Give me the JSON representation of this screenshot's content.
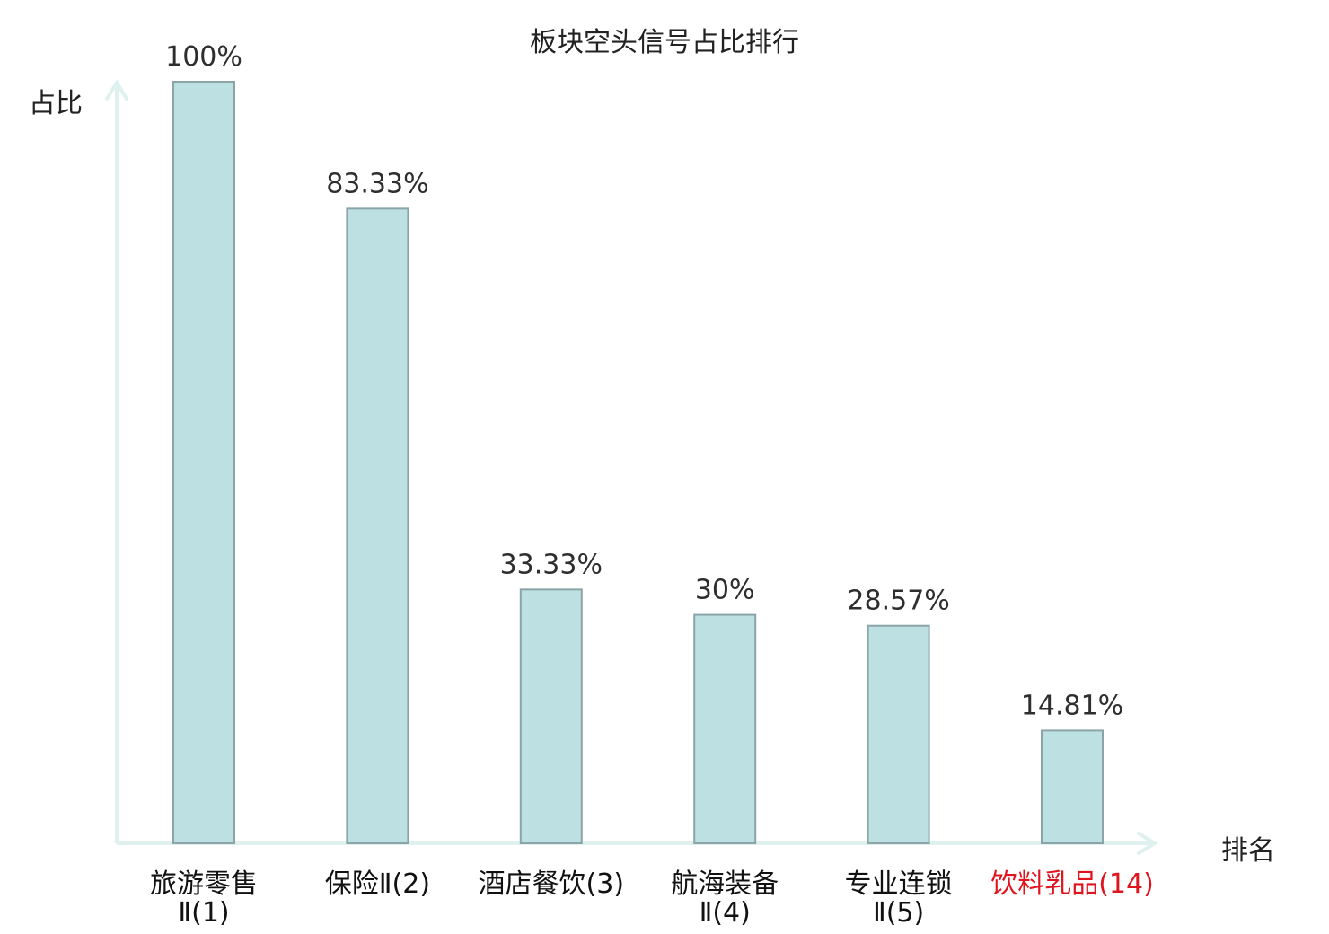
{
  "chart_data": {
    "type": "bar",
    "title": "板块空头信号占比排行",
    "xlabel": "排名",
    "ylabel": "占比",
    "ylim": [
      0,
      100
    ],
    "grid": false,
    "categories": [
      {
        "lines": [
          "旅游零售",
          "Ⅱ(1)"
        ],
        "highlight": false
      },
      {
        "lines": [
          "保险Ⅱ(2)"
        ],
        "highlight": false
      },
      {
        "lines": [
          "酒店餐饮(3)"
        ],
        "highlight": false
      },
      {
        "lines": [
          "航海装备",
          "Ⅱ(4)"
        ],
        "highlight": false
      },
      {
        "lines": [
          "专业连锁",
          "Ⅱ(5)"
        ],
        "highlight": false
      },
      {
        "lines": [
          "饮料乳品(14)"
        ],
        "highlight": true
      }
    ],
    "values": [
      100,
      83.33,
      33.33,
      30,
      28.57,
      14.81
    ],
    "value_labels": [
      "100%",
      "83.33%",
      "33.33%",
      "30%",
      "28.57%",
      "14.81%"
    ],
    "colors": {
      "bar_fill": "#bde0e3",
      "bar_stroke": "#8aa4a8",
      "axis": "#dff1ee",
      "text": "#2e2e2e",
      "highlight": "#e0141e"
    }
  }
}
